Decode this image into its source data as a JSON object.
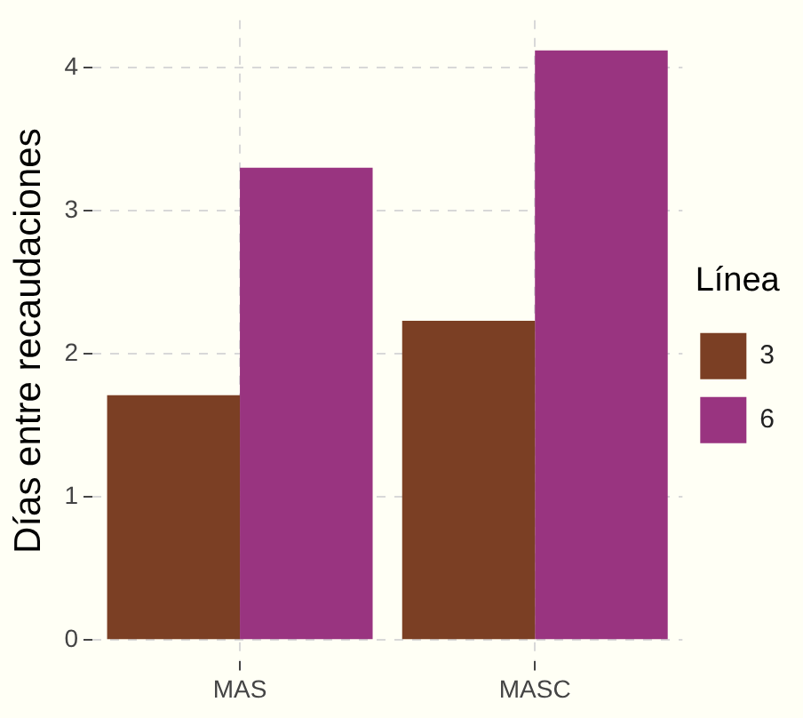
{
  "chart_data": {
    "type": "bar",
    "ylabel": "Días entre recaudaciones",
    "legend_title": "Línea",
    "categories": [
      "MAS",
      "MASC"
    ],
    "series": [
      {
        "name": "3",
        "color": "#7b3f24",
        "values": [
          1.71,
          2.23
        ]
      },
      {
        "name": "6",
        "color": "#993480",
        "values": [
          3.3,
          4.12
        ]
      }
    ],
    "ylim": [
      -0.15,
      4.33
    ],
    "yticks": [
      0,
      1,
      2,
      3,
      4
    ],
    "grid": true,
    "legend": "right"
  }
}
